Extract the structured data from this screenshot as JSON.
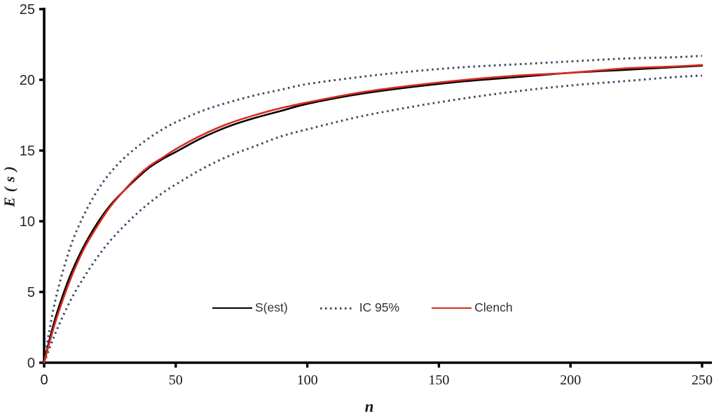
{
  "figure": {
    "background": "#ffffff",
    "axis_color": "#000000",
    "tick_label_color": "#262626"
  },
  "chart_data": {
    "type": "line",
    "title": "",
    "xlabel": "n",
    "ylabel": "E ( s )",
    "xlim": [
      0,
      250
    ],
    "ylim": [
      0,
      25
    ],
    "x_ticks": [
      0,
      50,
      100,
      150,
      200,
      250
    ],
    "y_ticks": [
      0,
      5,
      10,
      15,
      20,
      25
    ],
    "grid": false,
    "legend_position": "inside-bottom-center",
    "x": [
      0,
      2,
      5,
      10,
      15,
      20,
      25,
      30,
      35,
      40,
      45,
      50,
      60,
      70,
      80,
      90,
      100,
      120,
      140,
      160,
      180,
      200,
      220,
      240,
      250
    ],
    "series": [
      {
        "name": "IC 95% upper",
        "color": "#3d4d68",
        "style": "dotted",
        "values": [
          0,
          2.3,
          5.0,
          8.2,
          10.4,
          12.1,
          13.4,
          14.4,
          15.2,
          15.9,
          16.5,
          17.0,
          17.8,
          18.4,
          18.9,
          19.3,
          19.7,
          20.2,
          20.6,
          20.9,
          21.1,
          21.3,
          21.5,
          21.6,
          21.7
        ]
      },
      {
        "name": "IC 95% lower",
        "color": "#3d4d68",
        "style": "dotted",
        "values": [
          0,
          1.0,
          2.4,
          4.4,
          6.0,
          7.4,
          8.6,
          9.6,
          10.5,
          11.3,
          12.0,
          12.6,
          13.7,
          14.6,
          15.3,
          16.0,
          16.5,
          17.4,
          18.1,
          18.7,
          19.2,
          19.6,
          19.9,
          20.2,
          20.3
        ]
      },
      {
        "name": "S(est)",
        "color": "#000000",
        "style": "solid",
        "values": [
          0,
          1.6,
          3.6,
          6.2,
          8.2,
          9.8,
          11.1,
          12.1,
          13.0,
          13.8,
          14.4,
          14.9,
          15.9,
          16.7,
          17.3,
          17.8,
          18.3,
          19.0,
          19.5,
          19.9,
          20.2,
          20.5,
          20.7,
          20.9,
          21.0
        ]
      },
      {
        "name": "Clench",
        "color": "#d92b23",
        "style": "solid",
        "values": [
          0,
          1.4,
          3.3,
          5.9,
          8.0,
          9.6,
          11.0,
          12.1,
          13.1,
          13.9,
          14.5,
          15.1,
          16.1,
          16.9,
          17.5,
          18.0,
          18.4,
          19.1,
          19.6,
          20.0,
          20.3,
          20.5,
          20.8,
          20.95,
          21.05
        ]
      }
    ],
    "legend": [
      {
        "label": "S(est)",
        "color": "#000000",
        "style": "solid"
      },
      {
        "label": "IC 95%",
        "color": "#3d4d68",
        "style": "dotted"
      },
      {
        "label": "Clench",
        "color": "#d92b23",
        "style": "solid"
      }
    ]
  }
}
